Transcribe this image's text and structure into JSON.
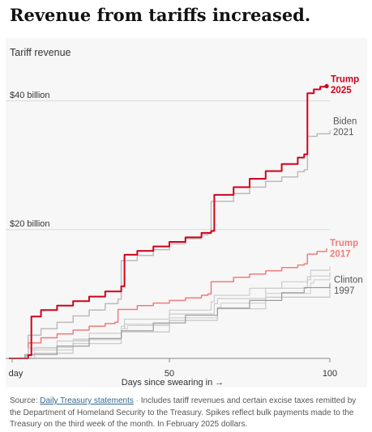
{
  "headline": "Revenue from tariffs increased.",
  "chart_data": {
    "type": "line",
    "title": "Tariff revenue",
    "xlabel": "Days since swearing in →",
    "xlim": [
      0,
      100
    ],
    "ylim": [
      0,
      45
    ],
    "x_ticks": [
      {
        "value": 1,
        "label": "1 day"
      },
      {
        "value": 50,
        "label": "50"
      },
      {
        "value": 100,
        "label": "100"
      }
    ],
    "y_ticks": [
      {
        "value": 20,
        "label": "$20 billion"
      },
      {
        "value": 40,
        "label": "$40 billion"
      }
    ],
    "series": [
      {
        "name": "Trump 2025",
        "label_line1": "Trump",
        "label_line2": "2025",
        "color": "#d0021b",
        "width": 2,
        "emphasis": true,
        "points": [
          [
            0,
            0
          ],
          [
            6,
            0.5
          ],
          [
            7,
            6.5
          ],
          [
            10,
            7.5
          ],
          [
            15,
            8.2
          ],
          [
            20,
            8.9
          ],
          [
            25,
            9.6
          ],
          [
            30,
            10.4
          ],
          [
            35,
            11.2
          ],
          [
            36,
            16.1
          ],
          [
            40,
            16.7
          ],
          [
            45,
            17.4
          ],
          [
            50,
            18.1
          ],
          [
            55,
            18.8
          ],
          [
            60,
            19.5
          ],
          [
            63,
            19.8
          ],
          [
            64,
            25.4
          ],
          [
            70,
            26.6
          ],
          [
            75,
            27.9
          ],
          [
            80,
            29.1
          ],
          [
            85,
            30.2
          ],
          [
            90,
            31.2
          ],
          [
            92,
            31.7
          ],
          [
            93,
            41.2
          ],
          [
            95,
            41.8
          ],
          [
            97,
            42.2
          ],
          [
            99,
            42.3
          ]
        ]
      },
      {
        "name": "Biden 2021",
        "label_line1": "Biden",
        "label_line2": "2021",
        "color": "#bbbbbb",
        "width": 1.5,
        "emphasis": false,
        "points": [
          [
            0,
            0
          ],
          [
            5,
            0.4
          ],
          [
            6,
            3.6
          ],
          [
            10,
            4.6
          ],
          [
            15,
            5.6
          ],
          [
            20,
            6.6
          ],
          [
            25,
            7.5
          ],
          [
            30,
            8.5
          ],
          [
            34,
            9.2
          ],
          [
            35,
            15.2
          ],
          [
            40,
            16.0
          ],
          [
            45,
            16.9
          ],
          [
            50,
            17.8
          ],
          [
            55,
            18.6
          ],
          [
            60,
            19.2
          ],
          [
            62,
            19.4
          ],
          [
            63,
            24.4
          ],
          [
            70,
            25.6
          ],
          [
            75,
            26.6
          ],
          [
            80,
            27.5
          ],
          [
            85,
            28.2
          ],
          [
            90,
            29.0
          ],
          [
            92,
            29.3
          ],
          [
            93,
            34.5
          ],
          [
            96,
            34.9
          ],
          [
            100,
            35.4
          ]
        ]
      },
      {
        "name": "Trump 2017",
        "label_line1": "Trump",
        "label_line2": "2017",
        "color": "#f07c7c",
        "width": 1.5,
        "emphasis": false,
        "points": [
          [
            0,
            0
          ],
          [
            5,
            0.3
          ],
          [
            6,
            2.4
          ],
          [
            10,
            3.2
          ],
          [
            15,
            3.8
          ],
          [
            20,
            4.4
          ],
          [
            25,
            5.0
          ],
          [
            30,
            5.4
          ],
          [
            33,
            5.6
          ],
          [
            34,
            7.6
          ],
          [
            40,
            8.2
          ],
          [
            45,
            8.6
          ],
          [
            50,
            9.0
          ],
          [
            55,
            9.4
          ],
          [
            60,
            9.8
          ],
          [
            62,
            10.0
          ],
          [
            63,
            11.9
          ],
          [
            70,
            12.6
          ],
          [
            75,
            13.1
          ],
          [
            80,
            13.6
          ],
          [
            85,
            14.1
          ],
          [
            90,
            14.5
          ],
          [
            92,
            14.7
          ],
          [
            93,
            16.2
          ],
          [
            96,
            16.6
          ],
          [
            99,
            17.1
          ]
        ]
      },
      {
        "name": "",
        "color": "#cccccc",
        "width": 1.2,
        "emphasis": false,
        "points": [
          [
            0,
            0
          ],
          [
            5,
            0.3
          ],
          [
            6,
            1.6
          ],
          [
            15,
            2.7
          ],
          [
            25,
            3.9
          ],
          [
            35,
            5.0
          ],
          [
            36,
            6.1
          ],
          [
            50,
            7.5
          ],
          [
            63,
            8.8
          ],
          [
            64,
            9.8
          ],
          [
            75,
            10.9
          ],
          [
            85,
            11.9
          ],
          [
            93,
            12.7
          ],
          [
            94,
            13.7
          ],
          [
            100,
            14.3
          ]
        ]
      },
      {
        "name": "",
        "color": "#cccccc",
        "width": 1.2,
        "emphasis": false,
        "points": [
          [
            0,
            0
          ],
          [
            6,
            0.4
          ],
          [
            7,
            1.3
          ],
          [
            20,
            2.9
          ],
          [
            35,
            4.6
          ],
          [
            36,
            5.3
          ],
          [
            50,
            6.9
          ],
          [
            64,
            8.5
          ],
          [
            65,
            9.3
          ],
          [
            80,
            10.9
          ],
          [
            93,
            12.2
          ],
          [
            94,
            12.8
          ],
          [
            100,
            13.4
          ]
        ]
      },
      {
        "name": "",
        "color": "#d4d4d4",
        "width": 1.2,
        "emphasis": false,
        "points": [
          [
            0,
            0
          ],
          [
            7,
            0.5
          ],
          [
            8,
            1.7
          ],
          [
            20,
            3.0
          ],
          [
            35,
            4.6
          ],
          [
            37,
            5.1
          ],
          [
            50,
            6.3
          ],
          [
            65,
            7.9
          ],
          [
            66,
            8.6
          ],
          [
            80,
            10.1
          ],
          [
            94,
            11.7
          ],
          [
            95,
            12.2
          ],
          [
            100,
            12.6
          ]
        ]
      },
      {
        "name": "",
        "color": "#c6c6c6",
        "width": 1.2,
        "emphasis": false,
        "points": [
          [
            0,
            0
          ],
          [
            8,
            0.8
          ],
          [
            20,
            2.3
          ],
          [
            35,
            4.1
          ],
          [
            50,
            5.9
          ],
          [
            65,
            7.7
          ],
          [
            80,
            9.5
          ],
          [
            100,
            11.8
          ]
        ]
      },
      {
        "name": "Clinton 1997",
        "label_line1": "Clinton",
        "label_line2": "1997",
        "color": "#9a9a9a",
        "width": 1.2,
        "emphasis": false,
        "points": [
          [
            0,
            0
          ],
          [
            5,
            0.6
          ],
          [
            15,
            1.9
          ],
          [
            25,
            3.1
          ],
          [
            35,
            4.3
          ],
          [
            45,
            5.5
          ],
          [
            55,
            6.7
          ],
          [
            65,
            7.8
          ],
          [
            75,
            9.0
          ],
          [
            85,
            10.2
          ],
          [
            92,
            11.0
          ],
          [
            100,
            11.6
          ]
        ]
      }
    ]
  },
  "footer": {
    "source_label": "Source:",
    "source_link": "Daily Treasury statements",
    "separator": "·",
    "note": "Includes tariff revenues and certain excise taxes remitted by the Department of Homeland Security to the Treasury. Spikes reflect bulk payments made to the Treasury on the third week of the month. In February 2025 dollars."
  }
}
